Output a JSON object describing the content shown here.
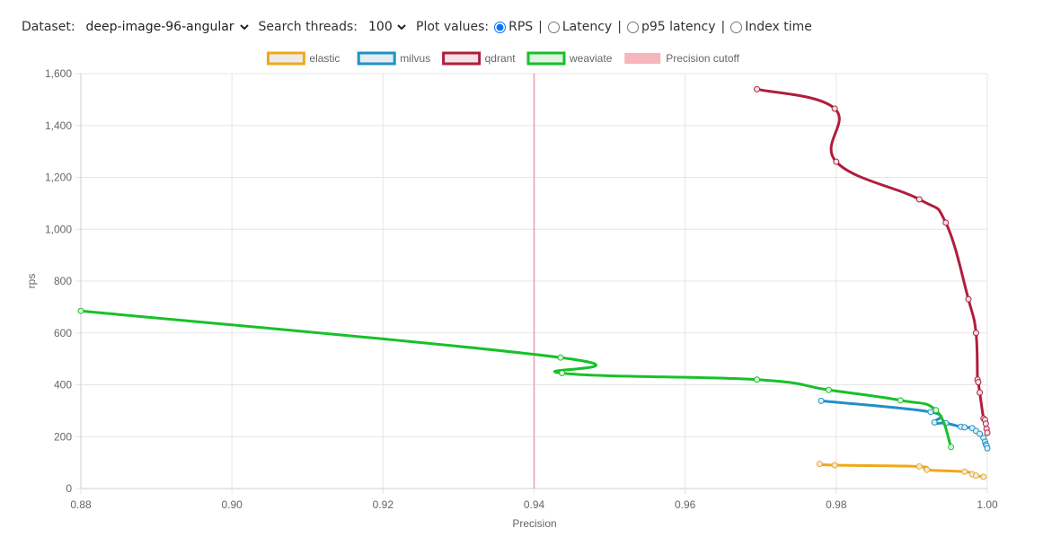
{
  "controls": {
    "dataset_label": "Dataset:",
    "dataset_value": "deep-image-96-angular",
    "threads_label": "Search threads:",
    "threads_value": "100",
    "plot_label": "Plot values:",
    "plot_options": [
      {
        "label": "RPS",
        "checked": true
      },
      {
        "label": "Latency",
        "checked": false
      },
      {
        "label": "p95 latency",
        "checked": false
      },
      {
        "label": "Index time",
        "checked": false
      }
    ],
    "separator": "|"
  },
  "chart_data": {
    "type": "line",
    "xlabel": "Precision",
    "ylabel": "rps",
    "xlim": [
      0.88,
      1.0
    ],
    "ylim": [
      0,
      1600
    ],
    "xticks": [
      "0.88",
      "0.90",
      "0.92",
      "0.94",
      "0.96",
      "0.98",
      "1.00"
    ],
    "yticks": [
      "0",
      "200",
      "400",
      "600",
      "800",
      "1,000",
      "1,200",
      "1,400",
      "1,600"
    ],
    "grid": true,
    "legend_position": "top-center",
    "cutoff": {
      "name": "Precision cutoff",
      "x": 0.94,
      "color": "#f7b5bd"
    },
    "series": [
      {
        "name": "elastic",
        "color": "#f0a818",
        "fill": "#ebebeb",
        "points": [
          [
            0.9778,
            95
          ],
          [
            0.9798,
            90
          ],
          [
            0.991,
            85
          ],
          [
            0.992,
            72
          ],
          [
            0.997,
            65
          ],
          [
            0.998,
            55
          ],
          [
            0.9985,
            50
          ],
          [
            0.9995,
            45
          ]
        ]
      },
      {
        "name": "milvus",
        "color": "#2290c8",
        "fill": "#e3edf3",
        "points": [
          [
            0.978,
            338
          ],
          [
            0.9925,
            295
          ],
          [
            0.993,
            255
          ],
          [
            0.9945,
            252
          ],
          [
            0.9965,
            238
          ],
          [
            0.997,
            236
          ],
          [
            0.998,
            233
          ],
          [
            0.9985,
            222
          ],
          [
            0.999,
            211
          ],
          [
            0.9995,
            195
          ],
          [
            0.9997,
            180
          ],
          [
            0.9998,
            170
          ],
          [
            0.9999,
            165
          ],
          [
            1.0,
            155
          ]
        ]
      },
      {
        "name": "qdrant",
        "color": "#b01e3c",
        "fill": "#f1e3e6",
        "points": [
          [
            0.9695,
            1540
          ],
          [
            0.9798,
            1465
          ],
          [
            0.98,
            1260
          ],
          [
            0.991,
            1115
          ],
          [
            0.9945,
            1025
          ],
          [
            0.9975,
            730
          ],
          [
            0.9985,
            600
          ],
          [
            0.9987,
            420
          ],
          [
            0.9988,
            410
          ],
          [
            0.999,
            370
          ],
          [
            0.9995,
            270
          ],
          [
            0.9997,
            265
          ],
          [
            0.9998,
            250
          ],
          [
            0.9999,
            230
          ],
          [
            1.0,
            215
          ]
        ]
      },
      {
        "name": "weaviate",
        "color": "#17c128",
        "fill": "#e2f3e4",
        "points": [
          [
            0.88,
            685
          ],
          [
            0.9435,
            505
          ],
          [
            0.9437,
            445
          ],
          [
            0.9695,
            420
          ],
          [
            0.979,
            380
          ],
          [
            0.9885,
            340
          ],
          [
            0.9932,
            302
          ],
          [
            0.9952,
            160
          ]
        ]
      }
    ]
  }
}
